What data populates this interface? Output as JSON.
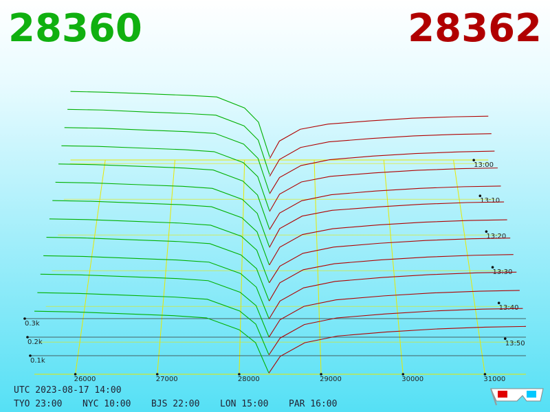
{
  "chart_data": {
    "type": "depth3d",
    "best_bid": 28360,
    "best_ask": 28362,
    "bid_color": "#00b000",
    "ask_color": "#b00000",
    "xlim": [
      25500,
      31500
    ],
    "xticks": [
      26000,
      27000,
      28000,
      29000,
      30000,
      31000
    ],
    "tlim": [
      -1,
      59
    ],
    "tticks": [
      {
        "value": 0,
        "label": "13:00"
      },
      {
        "value": 10,
        "label": "13:10"
      },
      {
        "value": 20,
        "label": "13:20"
      },
      {
        "value": 30,
        "label": "13:30"
      },
      {
        "value": 40,
        "label": "13:40"
      },
      {
        "value": 50,
        "label": "13:50"
      }
    ],
    "depth_ticks": [
      {
        "value": 100,
        "label": "0.1k"
      },
      {
        "value": 200,
        "label": "0.2k"
      },
      {
        "value": 300,
        "label": "0.3k"
      }
    ],
    "bid_prices": [
      25500,
      26000,
      26600,
      27200,
      27600,
      28000,
      28200,
      28360
    ],
    "ask_prices": [
      28362,
      28500,
      28800,
      29200,
      29800,
      30400,
      31000,
      31500
    ],
    "snapshots": [
      {
        "t": -1,
        "bids": [
          435,
          430,
          420,
          410,
          400,
          330,
          240,
          20
        ],
        "asks": [
          10,
          120,
          195,
          228,
          248,
          265,
          274,
          278
        ]
      },
      {
        "t": 4,
        "bids": [
          428,
          424,
          412,
          402,
          392,
          325,
          236,
          20
        ],
        "asks": [
          10,
          115,
          190,
          225,
          246,
          262,
          272,
          276
        ]
      },
      {
        "t": 9,
        "bids": [
          420,
          416,
          405,
          395,
          384,
          318,
          230,
          18
        ],
        "asks": [
          12,
          112,
          186,
          222,
          244,
          260,
          270,
          275
        ]
      },
      {
        "t": 14,
        "bids": [
          412,
          408,
          398,
          388,
          376,
          310,
          224,
          18
        ],
        "asks": [
          12,
          118,
          192,
          226,
          247,
          263,
          273,
          277
        ]
      },
      {
        "t": 19,
        "bids": [
          404,
          400,
          390,
          380,
          368,
          302,
          218,
          16
        ],
        "asks": [
          10,
          110,
          184,
          220,
          242,
          258,
          268,
          272
        ]
      },
      {
        "t": 24,
        "bids": [
          396,
          392,
          382,
          372,
          360,
          295,
          212,
          16
        ],
        "asks": [
          10,
          122,
          196,
          230,
          250,
          266,
          276,
          280
        ]
      },
      {
        "t": 29,
        "bids": [
          388,
          384,
          374,
          364,
          352,
          288,
          206,
          14
        ],
        "asks": [
          12,
          116,
          190,
          224,
          246,
          262,
          272,
          276
        ]
      },
      {
        "t": 34,
        "bids": [
          380,
          376,
          366,
          356,
          344,
          280,
          200,
          14
        ],
        "asks": [
          12,
          108,
          182,
          218,
          240,
          256,
          266,
          270
        ]
      },
      {
        "t": 39,
        "bids": [
          372,
          368,
          358,
          348,
          336,
          272,
          194,
          12
        ],
        "asks": [
          10,
          114,
          188,
          222,
          244,
          260,
          270,
          274
        ]
      },
      {
        "t": 44,
        "bids": [
          364,
          360,
          350,
          340,
          328,
          264,
          188,
          12
        ],
        "asks": [
          10,
          110,
          184,
          220,
          242,
          258,
          268,
          272
        ]
      },
      {
        "t": 49,
        "bids": [
          356,
          352,
          342,
          332,
          320,
          256,
          182,
          10
        ],
        "asks": [
          8,
          104,
          178,
          214,
          236,
          252,
          262,
          266
        ]
      },
      {
        "t": 54,
        "bids": [
          348,
          344,
          334,
          324,
          312,
          248,
          176,
          10
        ],
        "asks": [
          8,
          100,
          174,
          210,
          232,
          248,
          258,
          262
        ]
      },
      {
        "t": 59,
        "bids": [
          340,
          336,
          326,
          316,
          304,
          240,
          170,
          8
        ],
        "asks": [
          6,
          96,
          170,
          206,
          228,
          244,
          254,
          258
        ]
      }
    ],
    "utc_time": "UTC 2023-08-17 14:00",
    "clocks": [
      "TYO 23:00",
      "NYC 10:00",
      "BJS 22:00",
      "LON 15:00",
      "PAR 16:00"
    ]
  }
}
